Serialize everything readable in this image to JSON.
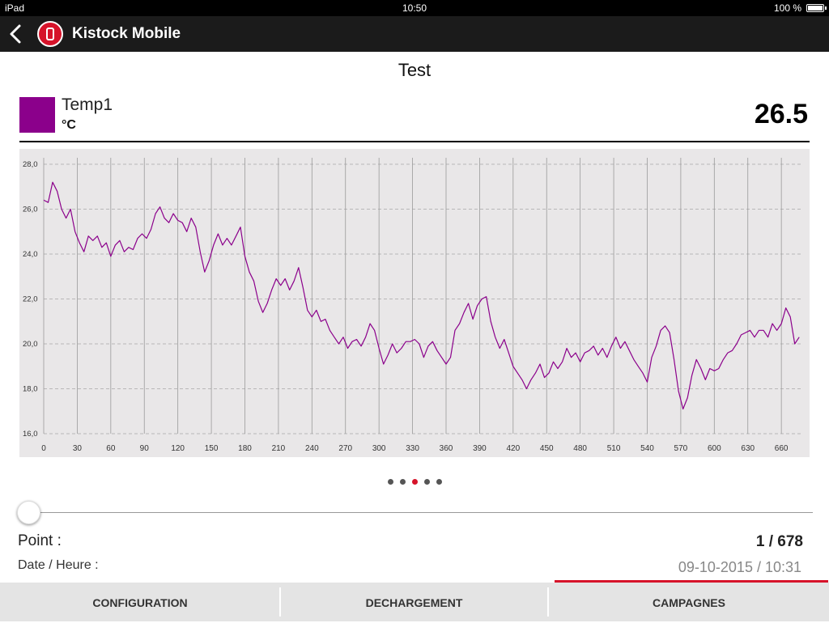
{
  "statusbar": {
    "device": "iPad",
    "time": "10:50",
    "battery": "100 %"
  },
  "navbar": {
    "app_title": "Kistock Mobile"
  },
  "page_title": "Test",
  "legend": {
    "name": "Temp1",
    "unit": "°C",
    "color": "#8b008b",
    "current_value": "26.5"
  },
  "chart_data": {
    "type": "line",
    "title": "",
    "xlabel": "",
    "ylabel": "",
    "xlim": [
      0,
      678
    ],
    "ylim": [
      16,
      28
    ],
    "x_ticks": [
      0,
      30,
      60,
      90,
      120,
      150,
      180,
      210,
      240,
      270,
      300,
      330,
      360,
      390,
      420,
      450,
      480,
      510,
      540,
      570,
      600,
      630,
      660
    ],
    "y_ticks": [
      "16,0",
      "18,0",
      "20,0",
      "22,0",
      "24,0",
      "26,0",
      "28,0"
    ],
    "y_tick_values": [
      16,
      18,
      20,
      22,
      24,
      26,
      28
    ],
    "grid": true,
    "series": [
      {
        "name": "Temp1",
        "color": "#8b008b",
        "points": [
          [
            0,
            26.4
          ],
          [
            4,
            26.3
          ],
          [
            8,
            27.2
          ],
          [
            12,
            26.8
          ],
          [
            16,
            26.0
          ],
          [
            20,
            25.6
          ],
          [
            24,
            26.0
          ],
          [
            28,
            25.0
          ],
          [
            32,
            24.5
          ],
          [
            36,
            24.1
          ],
          [
            40,
            24.8
          ],
          [
            44,
            24.6
          ],
          [
            48,
            24.8
          ],
          [
            52,
            24.3
          ],
          [
            56,
            24.5
          ],
          [
            60,
            23.9
          ],
          [
            64,
            24.4
          ],
          [
            68,
            24.6
          ],
          [
            72,
            24.1
          ],
          [
            76,
            24.3
          ],
          [
            80,
            24.2
          ],
          [
            84,
            24.7
          ],
          [
            88,
            24.9
          ],
          [
            92,
            24.7
          ],
          [
            96,
            25.1
          ],
          [
            100,
            25.8
          ],
          [
            104,
            26.1
          ],
          [
            108,
            25.6
          ],
          [
            112,
            25.4
          ],
          [
            116,
            25.8
          ],
          [
            120,
            25.5
          ],
          [
            124,
            25.4
          ],
          [
            128,
            25.0
          ],
          [
            132,
            25.6
          ],
          [
            136,
            25.2
          ],
          [
            140,
            24.1
          ],
          [
            144,
            23.2
          ],
          [
            148,
            23.7
          ],
          [
            152,
            24.4
          ],
          [
            156,
            24.9
          ],
          [
            160,
            24.4
          ],
          [
            164,
            24.7
          ],
          [
            168,
            24.4
          ],
          [
            172,
            24.8
          ],
          [
            176,
            25.2
          ],
          [
            180,
            23.9
          ],
          [
            184,
            23.2
          ],
          [
            188,
            22.8
          ],
          [
            192,
            21.9
          ],
          [
            196,
            21.4
          ],
          [
            200,
            21.8
          ],
          [
            204,
            22.4
          ],
          [
            208,
            22.9
          ],
          [
            212,
            22.6
          ],
          [
            216,
            22.9
          ],
          [
            220,
            22.4
          ],
          [
            224,
            22.8
          ],
          [
            228,
            23.4
          ],
          [
            232,
            22.5
          ],
          [
            236,
            21.5
          ],
          [
            240,
            21.2
          ],
          [
            244,
            21.5
          ],
          [
            248,
            21.0
          ],
          [
            252,
            21.1
          ],
          [
            256,
            20.6
          ],
          [
            260,
            20.3
          ],
          [
            264,
            20.0
          ],
          [
            268,
            20.3
          ],
          [
            272,
            19.8
          ],
          [
            276,
            20.1
          ],
          [
            280,
            20.2
          ],
          [
            284,
            19.9
          ],
          [
            288,
            20.3
          ],
          [
            292,
            20.9
          ],
          [
            296,
            20.6
          ],
          [
            300,
            19.8
          ],
          [
            304,
            19.1
          ],
          [
            308,
            19.5
          ],
          [
            312,
            20.0
          ],
          [
            316,
            19.6
          ],
          [
            320,
            19.8
          ],
          [
            324,
            20.1
          ],
          [
            328,
            20.1
          ],
          [
            332,
            20.2
          ],
          [
            336,
            20.0
          ],
          [
            340,
            19.4
          ],
          [
            344,
            19.9
          ],
          [
            348,
            20.1
          ],
          [
            352,
            19.7
          ],
          [
            356,
            19.4
          ],
          [
            360,
            19.1
          ],
          [
            364,
            19.4
          ],
          [
            368,
            20.6
          ],
          [
            372,
            20.9
          ],
          [
            376,
            21.4
          ],
          [
            380,
            21.8
          ],
          [
            384,
            21.1
          ],
          [
            388,
            21.7
          ],
          [
            392,
            22.0
          ],
          [
            396,
            22.1
          ],
          [
            400,
            21.0
          ],
          [
            404,
            20.3
          ],
          [
            408,
            19.8
          ],
          [
            412,
            20.2
          ],
          [
            416,
            19.6
          ],
          [
            420,
            19.0
          ],
          [
            424,
            18.7
          ],
          [
            428,
            18.4
          ],
          [
            432,
            18.0
          ],
          [
            436,
            18.4
          ],
          [
            440,
            18.7
          ],
          [
            444,
            19.1
          ],
          [
            448,
            18.5
          ],
          [
            452,
            18.7
          ],
          [
            456,
            19.2
          ],
          [
            460,
            18.9
          ],
          [
            464,
            19.2
          ],
          [
            468,
            19.8
          ],
          [
            472,
            19.4
          ],
          [
            476,
            19.6
          ],
          [
            480,
            19.2
          ],
          [
            484,
            19.6
          ],
          [
            488,
            19.7
          ],
          [
            492,
            19.9
          ],
          [
            496,
            19.5
          ],
          [
            500,
            19.8
          ],
          [
            504,
            19.4
          ],
          [
            508,
            19.9
          ],
          [
            512,
            20.3
          ],
          [
            516,
            19.8
          ],
          [
            520,
            20.1
          ],
          [
            524,
            19.7
          ],
          [
            528,
            19.3
          ],
          [
            532,
            19.0
          ],
          [
            536,
            18.7
          ],
          [
            540,
            18.3
          ],
          [
            544,
            19.4
          ],
          [
            548,
            19.9
          ],
          [
            552,
            20.6
          ],
          [
            556,
            20.8
          ],
          [
            560,
            20.5
          ],
          [
            564,
            19.3
          ],
          [
            568,
            17.9
          ],
          [
            572,
            17.1
          ],
          [
            576,
            17.6
          ],
          [
            580,
            18.6
          ],
          [
            584,
            19.3
          ],
          [
            588,
            18.9
          ],
          [
            592,
            18.4
          ],
          [
            596,
            18.9
          ],
          [
            600,
            18.8
          ],
          [
            604,
            18.9
          ],
          [
            608,
            19.3
          ],
          [
            612,
            19.6
          ],
          [
            616,
            19.7
          ],
          [
            620,
            20.0
          ],
          [
            624,
            20.4
          ],
          [
            628,
            20.5
          ],
          [
            632,
            20.6
          ],
          [
            636,
            20.3
          ],
          [
            640,
            20.6
          ],
          [
            644,
            20.6
          ],
          [
            648,
            20.3
          ],
          [
            652,
            20.9
          ],
          [
            656,
            20.6
          ],
          [
            660,
            20.9
          ],
          [
            664,
            21.6
          ],
          [
            668,
            21.2
          ],
          [
            672,
            20.0
          ],
          [
            676,
            20.3
          ]
        ]
      }
    ]
  },
  "pager": {
    "page_count": 5,
    "active_index": 2,
    "active_color": "#d6132a"
  },
  "point": {
    "label": "Point :",
    "value": "1 / 678",
    "progress": 0.0
  },
  "datetime": {
    "label": "Date / Heure :",
    "value": "09-10-2015 / 10:31"
  },
  "tabs": [
    {
      "label": "CONFIGURATION",
      "active": false
    },
    {
      "label": "DECHARGEMENT",
      "active": false
    },
    {
      "label": "CAMPAGNES",
      "active": true
    }
  ]
}
